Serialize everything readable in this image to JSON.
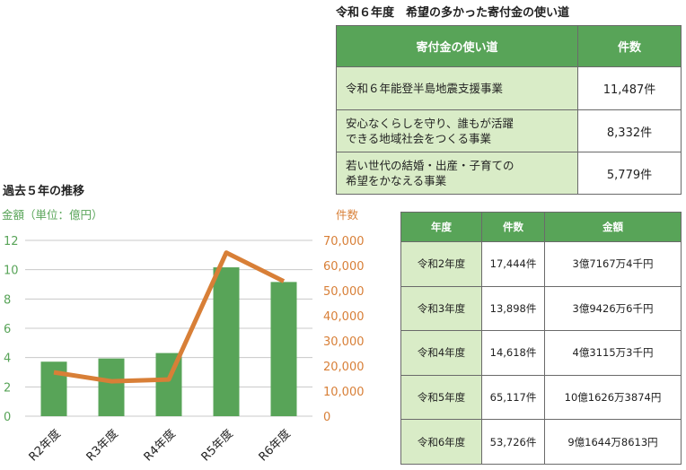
{
  "uses_section": {
    "title": "令和６年度　希望の多かった寄付金の使い道",
    "headers": [
      "寄付金の使い道",
      "件数"
    ],
    "rows": [
      {
        "use_lines": [
          "令和６年能登半島地震支援事業"
        ],
        "count": "11,487件"
      },
      {
        "use_lines": [
          "安心なくらしを守り、誰もが活躍",
          "できる地域社会をつくる事業"
        ],
        "count": "8,332件"
      },
      {
        "use_lines": [
          "若い世代の結婚・出産・子育ての",
          "希望をかなえる事業"
        ],
        "count": "5,779件"
      }
    ]
  },
  "trend_section": {
    "title": "過去５年の推移"
  },
  "chart_data": {
    "type": "bar",
    "categories": [
      "R2年度",
      "R3年度",
      "R4年度",
      "R5年度",
      "R6年度"
    ],
    "series": [
      {
        "name": "金額（単位：億円）",
        "type": "bar",
        "axis": "left",
        "color": "#58a458",
        "values": [
          3.72,
          3.94,
          4.31,
          10.16,
          9.16
        ]
      },
      {
        "name": "件数",
        "type": "line",
        "axis": "right",
        "color": "#d87f37",
        "values": [
          17444,
          13898,
          14618,
          65117,
          53726
        ]
      }
    ],
    "ylabel_left": "金額（単位：億円）",
    "ylabel_right": "件数",
    "ylim_left": [
      0,
      12
    ],
    "yticks_left": [
      "0",
      "2",
      "4",
      "6",
      "8",
      "10",
      "12"
    ],
    "ylim_right": [
      0,
      70000
    ],
    "yticks_right": [
      "0",
      "10,000",
      "20,000",
      "30,000",
      "40,000",
      "50,000",
      "60,000",
      "70,000"
    ],
    "grid": true,
    "colors": {
      "left_axis_text": "#58a458",
      "right_axis_text": "#d87f37"
    }
  },
  "history_table": {
    "headers": [
      "年度",
      "件数",
      "金額"
    ],
    "rows": [
      {
        "year": "令和2年度",
        "count": "17,444件",
        "amount": "3億7167万4千円"
      },
      {
        "year": "令和3年度",
        "count": "13,898件",
        "amount": "3億9426万6千円"
      },
      {
        "year": "令和4年度",
        "count": "14,618件",
        "amount": "4億3115万3千円"
      },
      {
        "year": "令和5年度",
        "count": "65,117件",
        "amount": "10億1626万3874円"
      },
      {
        "year": "令和6年度",
        "count": "53,726件",
        "amount": "9億1644万8613円"
      }
    ]
  }
}
